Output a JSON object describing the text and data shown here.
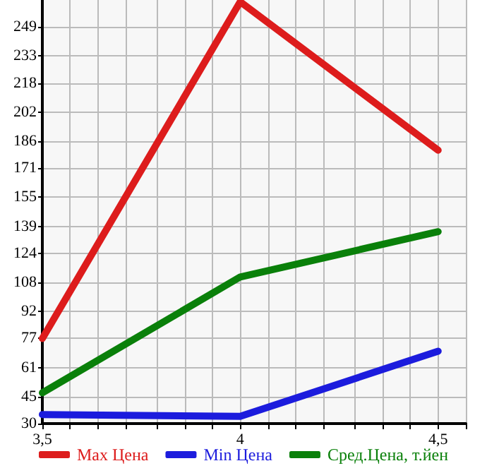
{
  "chart_data": {
    "type": "line",
    "x": [
      3.5,
      4,
      4.5
    ],
    "series": [
      {
        "name": "Max Цена",
        "color": "#dd1c1c",
        "values": [
          77,
          263,
          181
        ]
      },
      {
        "name": "Min Цена",
        "color": "#1c1cdd",
        "values": [
          35,
          34,
          70
        ]
      },
      {
        "name": "Сред.Цена, т.йен",
        "color": "#0a800a",
        "values": [
          47,
          111,
          136
        ]
      }
    ],
    "xlim": [
      3.5,
      4.57
    ],
    "xticks": [
      {
        "value": 3.5,
        "label": "3,5"
      },
      {
        "value": 3.57,
        "label": null
      },
      {
        "value": 3.64,
        "label": null
      },
      {
        "value": 3.71,
        "label": null
      },
      {
        "value": 3.79,
        "label": null
      },
      {
        "value": 3.86,
        "label": null
      },
      {
        "value": 3.93,
        "label": null
      },
      {
        "value": 4,
        "label": "4"
      },
      {
        "value": 4.07,
        "label": null
      },
      {
        "value": 4.14,
        "label": null
      },
      {
        "value": 4.21,
        "label": null
      },
      {
        "value": 4.29,
        "label": null
      },
      {
        "value": 4.36,
        "label": null
      },
      {
        "value": 4.43,
        "label": null
      },
      {
        "value": 4.5,
        "label": "4,5"
      },
      {
        "value": 4.57,
        "label": null
      }
    ],
    "ylim": [
      30,
      264
    ],
    "yticks": [
      30,
      45,
      61,
      77,
      92,
      108,
      124,
      139,
      155,
      171,
      186,
      202,
      218,
      233,
      249
    ],
    "grid": true,
    "legend": "bottom",
    "marker": "none",
    "line_style": "solid"
  }
}
